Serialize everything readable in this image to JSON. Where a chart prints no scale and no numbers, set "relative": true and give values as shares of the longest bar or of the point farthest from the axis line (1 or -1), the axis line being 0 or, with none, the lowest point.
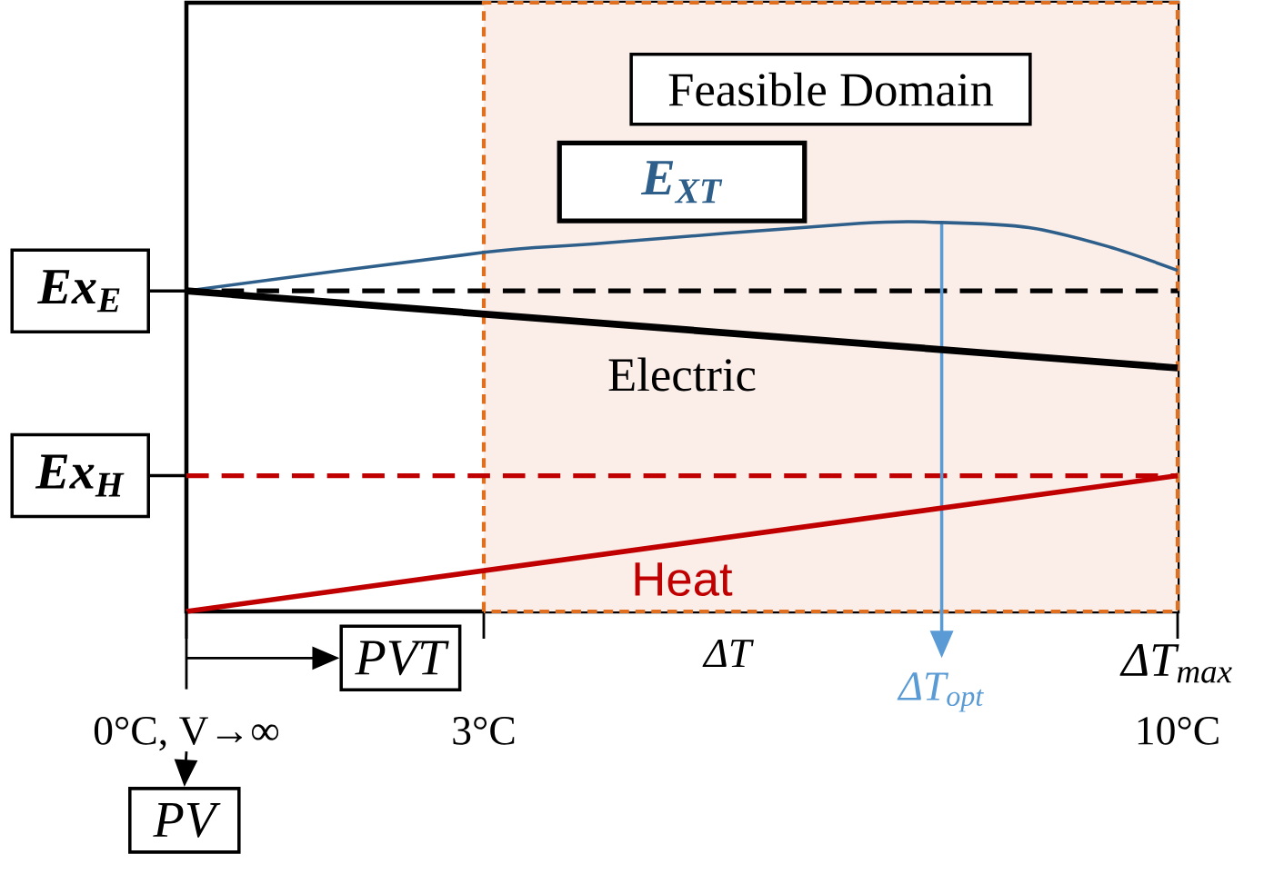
{
  "chart_data": {
    "type": "line",
    "relative": true,
    "xlabel": "ΔT",
    "xlim": [
      0,
      10
    ],
    "xticks": [
      {
        "value": 0,
        "label": "0°C, V→∞"
      },
      {
        "value": 3,
        "label": "3°C"
      },
      {
        "value": 10,
        "label": "10°C"
      }
    ],
    "series": [
      {
        "name": "E$_{XT}$",
        "color": "#2e5f8a",
        "x": [
          0,
          3,
          4.1,
          6.8,
          7.62,
          8.5,
          9.3,
          10
        ],
        "values": [
          0.824,
          0.923,
          0.945,
          0.998,
          1,
          0.987,
          0.938,
          0.877
        ]
      },
      {
        "name": "Electric",
        "color": "#000000",
        "x": [
          0,
          10
        ],
        "values": [
          0.824,
          0.626
        ]
      },
      {
        "name": "Heat",
        "color": "#c00000",
        "x": [
          0,
          10
        ],
        "values": [
          0,
          0.349
        ]
      }
    ],
    "ref_lines": [
      {
        "axis": "y",
        "value": 0.824,
        "label": "Ex$_{E}$",
        "color": "#000000",
        "line_style": "dashed"
      },
      {
        "axis": "y",
        "value": 0.349,
        "label": "Ex$_{H}$",
        "color": "#c00000",
        "line_style": "dashed"
      },
      {
        "axis": "x",
        "value": 7.62,
        "label": "ΔT$_{opt}$",
        "color": "#5b9bd5"
      }
    ],
    "bands": [
      {
        "axis": "x",
        "from": 3,
        "to": 10,
        "label": "Feasible Domain",
        "color": "#fbeee8"
      }
    ],
    "annotations": [
      "PVT",
      "PV",
      {
        "text": "ΔT$_{max}$",
        "x": 10,
        "y": 0
      }
    ]
  }
}
